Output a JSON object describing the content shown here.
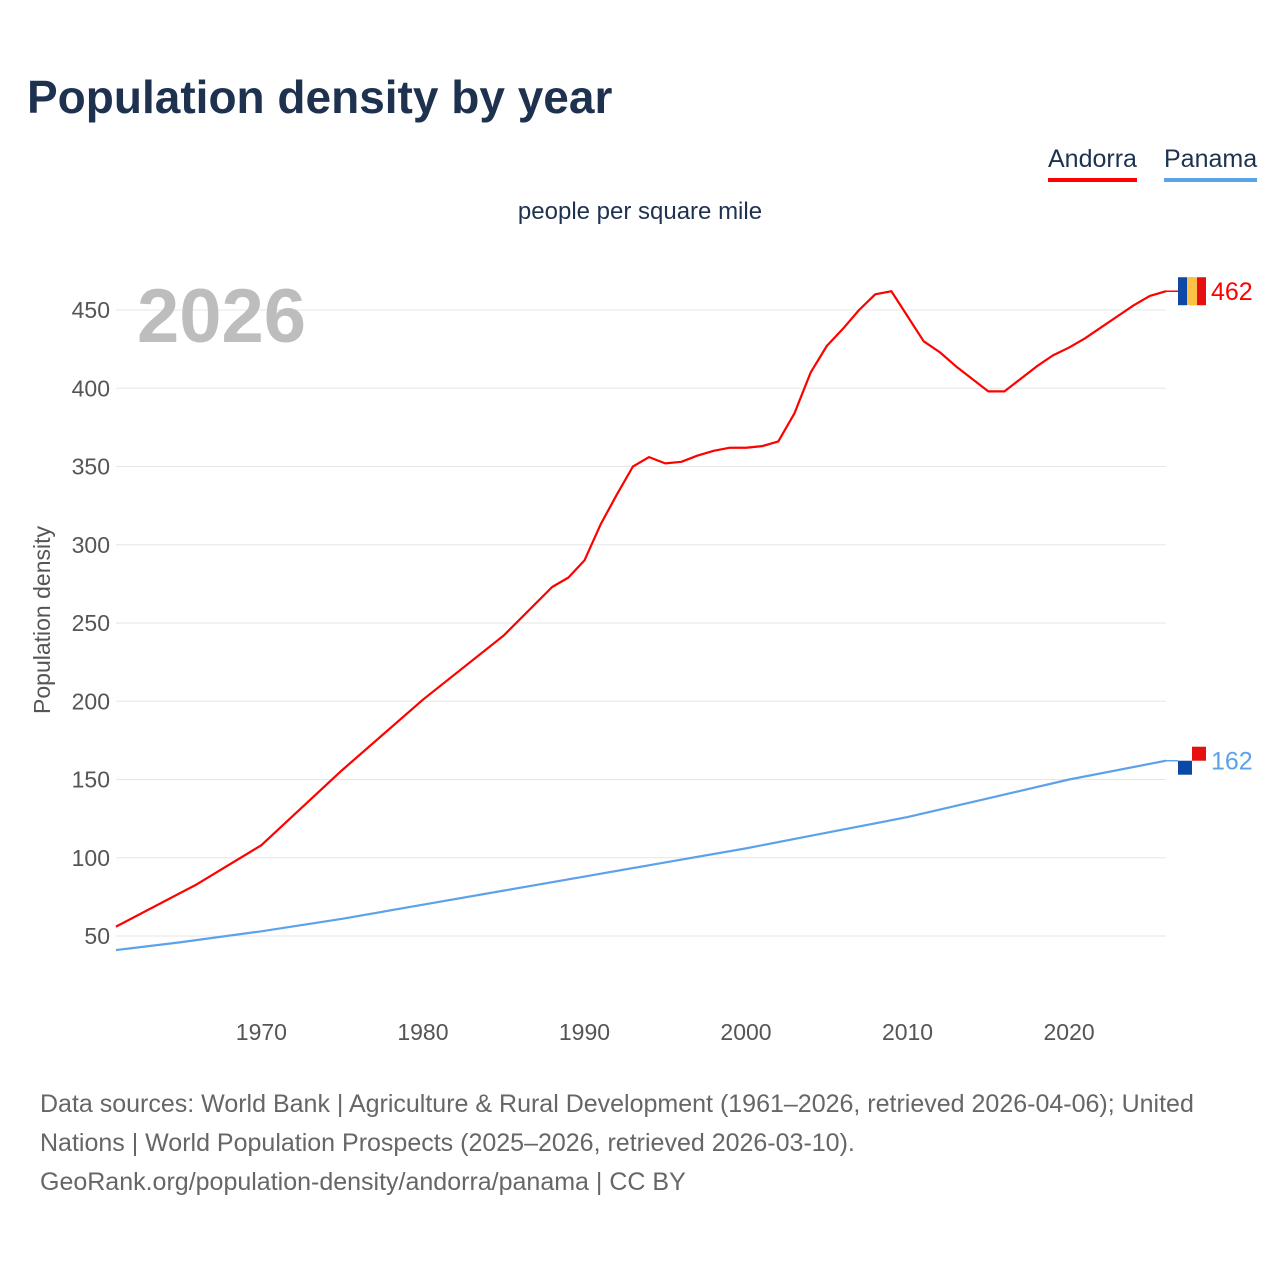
{
  "title": "Population density by year",
  "legend": [
    {
      "label": "Andorra",
      "color": "#ff0000"
    },
    {
      "label": "Panama",
      "color": "#5ca2e8"
    }
  ],
  "footer": {
    "line1": "Data sources: World Bank | Agriculture & Rural Development (1961–2026, retrieved 2026-04-06); United Nations | World Population Prospects (2025–2026, retrieved 2026-03-10).",
    "line2": "GeoRank.org/population-density/andorra/panama | CC BY"
  },
  "chart_data": {
    "type": "line",
    "title": "Population density by year",
    "subtitle": "people per square mile",
    "ylabel": "Population density",
    "xlabel": "",
    "year_label": "2026",
    "xlim": [
      1961,
      2026
    ],
    "ylim": [
      0,
      490
    ],
    "xticks": [
      1970,
      1980,
      1990,
      2000,
      2010,
      2020
    ],
    "yticks": [
      50,
      100,
      150,
      200,
      250,
      300,
      350,
      400,
      450
    ],
    "grid": true,
    "series": [
      {
        "name": "Andorra",
        "color": "#ff0000",
        "end_label": "462",
        "x": [
          1961,
          1966,
          1970,
          1975,
          1980,
          1985,
          1988,
          1989,
          1990,
          1991,
          1992,
          1993,
          1994,
          1995,
          1996,
          1997,
          1998,
          1999,
          2000,
          2001,
          2002,
          2003,
          2004,
          2005,
          2006,
          2007,
          2008,
          2009,
          2010,
          2011,
          2012,
          2013,
          2014,
          2015,
          2016,
          2017,
          2018,
          2019,
          2020,
          2021,
          2022,
          2023,
          2024,
          2025,
          2026
        ],
        "y": [
          56,
          83,
          108,
          156,
          201,
          242,
          273,
          279,
          290,
          313,
          332,
          350,
          356,
          352,
          353,
          357,
          360,
          362,
          362,
          363,
          366,
          384,
          410,
          427,
          438,
          450,
          460,
          462,
          446,
          430,
          423,
          414,
          406,
          398,
          398,
          406,
          414,
          421,
          426,
          432,
          439,
          446,
          453,
          459,
          462
        ]
      },
      {
        "name": "Panama",
        "color": "#5ca2e8",
        "end_label": "162",
        "x": [
          1961,
          1965,
          1970,
          1975,
          1980,
          1985,
          1990,
          1995,
          2000,
          2005,
          2010,
          2015,
          2020,
          2026
        ],
        "y": [
          41,
          46,
          53,
          61,
          70,
          79,
          88,
          97,
          106,
          116,
          126,
          138,
          150,
          162
        ]
      }
    ]
  }
}
